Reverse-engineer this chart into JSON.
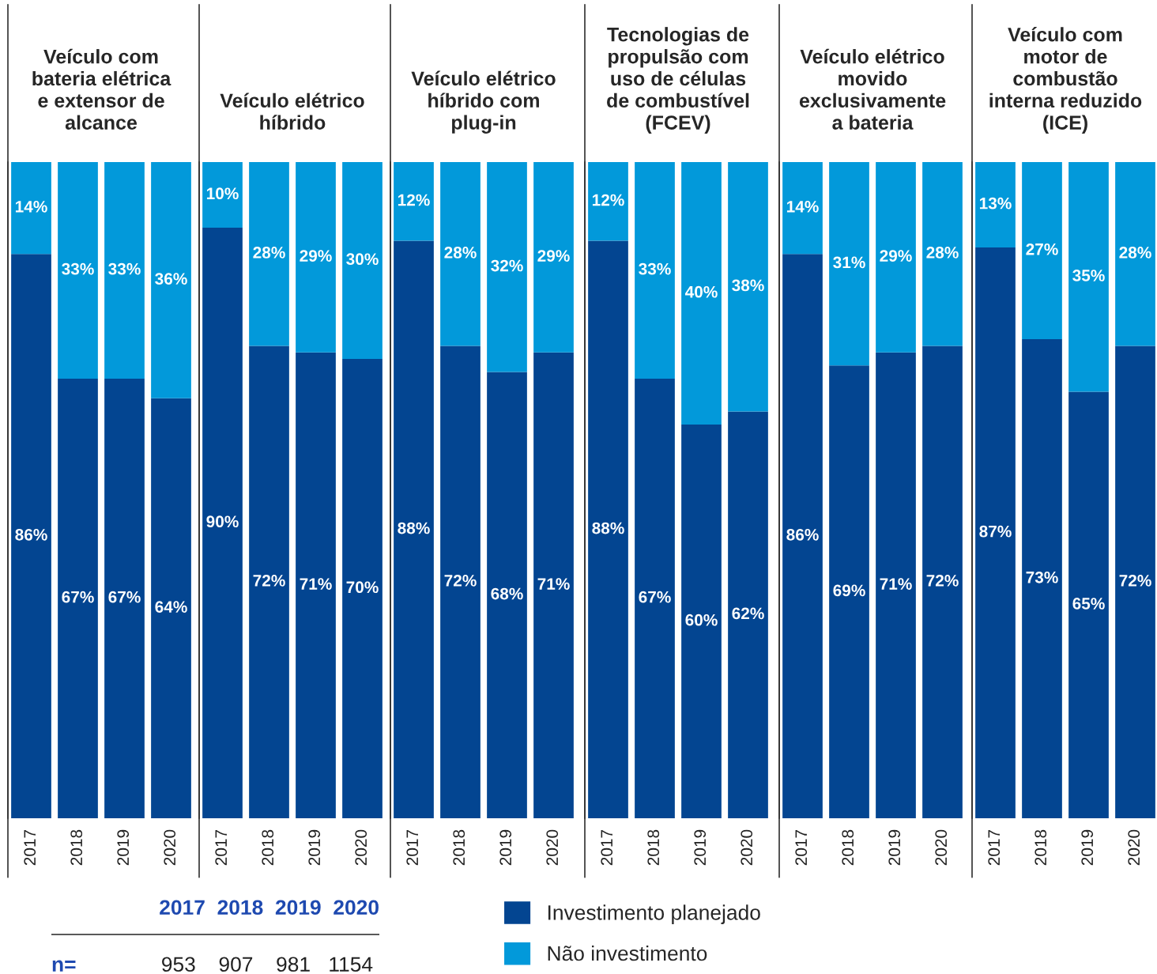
{
  "chart_data": [
    {
      "type": "bar",
      "stacked": true,
      "title": "Veículo com\nbateria elétrica\ne extensor de\nalcance",
      "categories": [
        "2017",
        "2018",
        "2019",
        "2020"
      ],
      "tick_labels": "x",
      "legend": "bottom",
      "series": [
        {
          "name": "Investimento planejado",
          "color": "#034591",
          "values": [
            86,
            67,
            67,
            64
          ],
          "value_labels": [
            "86%",
            "67%",
            "67%",
            "64%"
          ]
        },
        {
          "name": "Não investimento",
          "color": "#0299DA",
          "values": [
            14,
            33,
            33,
            36
          ],
          "value_labels": [
            "14%",
            "33%",
            "33%",
            "36%"
          ]
        }
      ]
    },
    {
      "type": "bar",
      "stacked": true,
      "title": "Veículo elétrico\nhíbrido",
      "categories": [
        "2017",
        "2018",
        "2019",
        "2020"
      ],
      "tick_labels": "x",
      "series": [
        {
          "color": "#034591",
          "values": [
            90,
            72,
            71,
            70
          ],
          "value_labels": [
            "90%",
            "72%",
            "71%",
            "70%"
          ]
        },
        {
          "color": "#0299DA",
          "values": [
            10,
            28,
            29,
            30
          ],
          "value_labels": [
            "10%",
            "28%",
            "29%",
            "30%"
          ]
        }
      ]
    },
    {
      "type": "bar",
      "stacked": true,
      "title": "Veículo elétrico\nhíbrido com\nplug-in",
      "categories": [
        "2017",
        "2018",
        "2019",
        "2020"
      ],
      "tick_labels": "x",
      "series": [
        {
          "color": "#034591",
          "values": [
            88,
            72,
            68,
            71
          ],
          "value_labels": [
            "88%",
            "72%",
            "68%",
            "71%"
          ]
        },
        {
          "color": "#0299DA",
          "values": [
            12,
            28,
            32,
            29
          ],
          "value_labels": [
            "12%",
            "28%",
            "32%",
            "29%"
          ]
        }
      ]
    },
    {
      "type": "bar",
      "stacked": true,
      "title": "Tecnologias de\npropulsão com\nuso de células\nde combustível\n(FCEV)",
      "categories": [
        "2017",
        "2018",
        "2019",
        "2020"
      ],
      "tick_labels": "x",
      "series": [
        {
          "color": "#034591",
          "values": [
            88,
            67,
            60,
            62
          ],
          "value_labels": [
            "88%",
            "67%",
            "60%",
            "62%"
          ]
        },
        {
          "color": "#0299DA",
          "values": [
            12,
            33,
            40,
            38
          ],
          "value_labels": [
            "12%",
            "33%",
            "40%",
            "38%"
          ]
        }
      ]
    },
    {
      "type": "bar",
      "stacked": true,
      "title": "Veículo elétrico\nmovido\nexclusivamente\na bateria",
      "categories": [
        "2017",
        "2018",
        "2019",
        "2020"
      ],
      "tick_labels": "x",
      "series": [
        {
          "color": "#034591",
          "values": [
            86,
            69,
            71,
            72
          ],
          "value_labels": [
            "86%",
            "69%",
            "71%",
            "72%"
          ]
        },
        {
          "color": "#0299DA",
          "values": [
            14,
            31,
            29,
            28
          ],
          "value_labels": [
            "14%",
            "31%",
            "29%",
            "28%"
          ]
        }
      ]
    },
    {
      "type": "bar",
      "stacked": true,
      "title": "Veículo com\nmotor de\ncombustão\ninterna reduzido\n(ICE)",
      "categories": [
        "2017",
        "2018",
        "2019",
        "2020"
      ],
      "tick_labels": "x",
      "series": [
        {
          "color": "#034591",
          "values": [
            87,
            73,
            65,
            72
          ],
          "value_labels": [
            "87%",
            "73%",
            "65%",
            "72%"
          ]
        },
        {
          "color": "#0299DA",
          "values": [
            13,
            27,
            35,
            28
          ],
          "value_labels": [
            "13%",
            "27%",
            "35%",
            "28%"
          ]
        }
      ]
    },
    {
      "type": "other",
      "categories": [
        "2017",
        "2018",
        "2019",
        "2020"
      ],
      "values": [
        953,
        907,
        981,
        1154
      ],
      "data_labels": true,
      "annotations": [
        "n="
      ]
    }
  ]
}
